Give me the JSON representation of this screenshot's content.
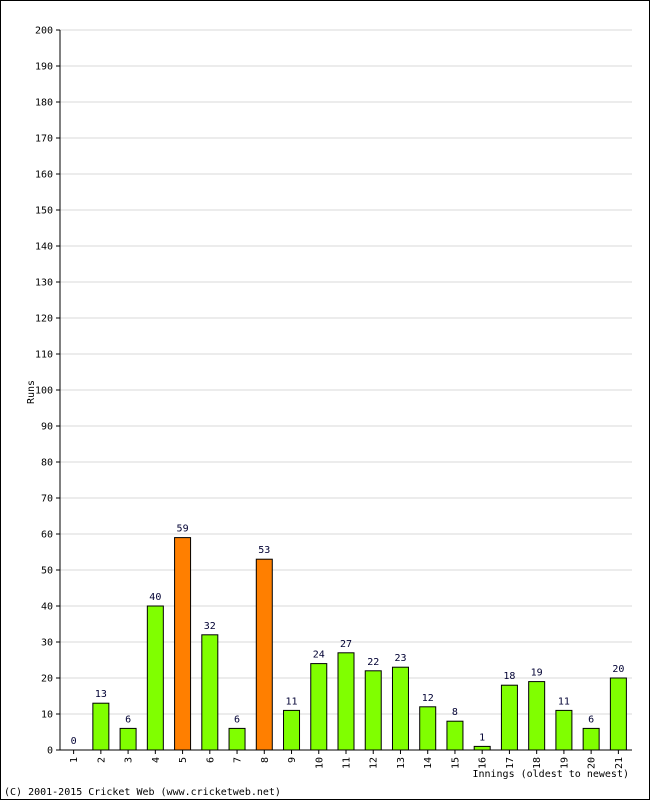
{
  "chart_data": {
    "type": "bar",
    "title": "",
    "xlabel": "Innings (oldest to newest)",
    "ylabel": "Runs",
    "ylim": [
      0,
      200
    ],
    "ytick_step": 10,
    "grid": true,
    "categories": [
      "1",
      "2",
      "3",
      "4",
      "5",
      "6",
      "7",
      "8",
      "9",
      "10",
      "11",
      "12",
      "13",
      "14",
      "15",
      "16",
      "17",
      "18",
      "19",
      "20",
      "21"
    ],
    "values": [
      0,
      13,
      6,
      40,
      59,
      32,
      6,
      53,
      11,
      24,
      27,
      22,
      23,
      12,
      8,
      1,
      18,
      19,
      11,
      6,
      20
    ],
    "data_labels": [
      "0",
      "13",
      "6",
      "40",
      "59",
      "32",
      "6",
      "53",
      "11",
      "24",
      "27",
      "22",
      "23",
      "12",
      "8",
      "1",
      "18",
      "19",
      "11",
      "6",
      "20"
    ],
    "fifty_plus": [
      false,
      false,
      false,
      false,
      true,
      false,
      false,
      true,
      false,
      false,
      false,
      false,
      false,
      false,
      false,
      false,
      false,
      false,
      false,
      false,
      false
    ],
    "colors": {
      "bar": "#80ff00",
      "fifty": "#ff7f00",
      "label": "#000033",
      "grid": "#d8d8d8"
    }
  },
  "footer": "(C) 2001-2015 Cricket Web (www.cricketweb.net)"
}
